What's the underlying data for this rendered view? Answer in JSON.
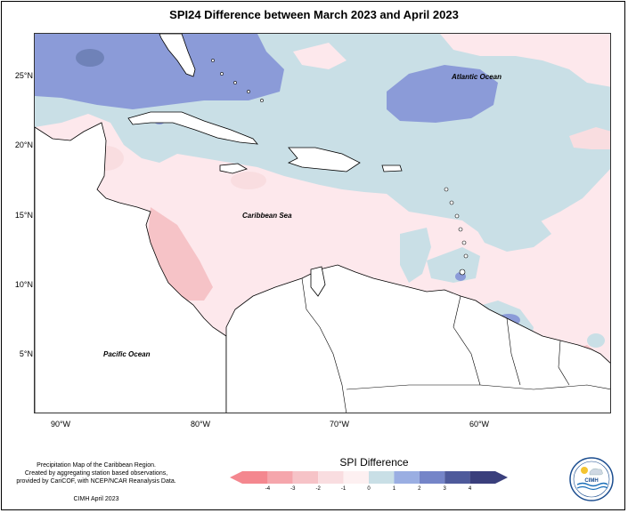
{
  "title": "SPI24 Difference between March 2023 and April 2023",
  "y_ticks": [
    "25°N",
    "20°N",
    "15°N",
    "10°N",
    "5°N"
  ],
  "x_ticks": [
    "90°W",
    "80°W",
    "70°W",
    "60°W"
  ],
  "ocean_labels": {
    "atlantic": "Atlantic Ocean",
    "caribbean": "Caribbean Sea",
    "pacific": "Pacific Ocean"
  },
  "footnote": {
    "line1": "Precipitation Map of the Caribbean Region.",
    "line2": "Created by aggregating station based observations,",
    "line3": "provided by CariCOF, with NCEP/NCAR Reanalysis Data.",
    "credit": "CIMH April 2023"
  },
  "legend": {
    "title": "SPI Difference",
    "labels": [
      "-4",
      "-3",
      "-2",
      "-1",
      "0",
      "1",
      "2",
      "3",
      "4"
    ],
    "colors": [
      "#f4878f",
      "#f5a6ac",
      "#f6c3c7",
      "#f9dde0",
      "#fdf0f1",
      "#c9dfe6",
      "#9aaee2",
      "#7585c8",
      "#4e5a9b",
      "#3a3f7c"
    ]
  },
  "logo": {
    "text": "CIMH"
  }
}
